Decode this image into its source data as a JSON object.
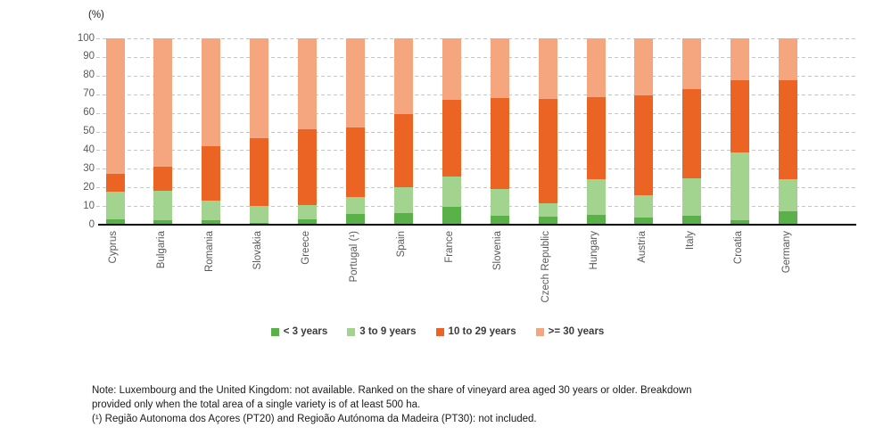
{
  "unit_label": "(%)",
  "chart_data": {
    "type": "bar",
    "stacked": true,
    "orientation": "vertical",
    "title": "",
    "ylabel": "(%)",
    "xlabel": "",
    "ylim": [
      0,
      100
    ],
    "ytick_step": 10,
    "yticks": [
      100,
      90,
      80,
      70,
      60,
      50,
      40,
      30,
      20,
      10,
      0
    ],
    "grid": "horizontal-dashed",
    "legend_position": "bottom-center",
    "categories": [
      "Cyprus",
      "Bulgaria",
      "Romania",
      "Slovakia",
      "Greece",
      "Portugal (¹)",
      "Spain",
      "France",
      "Slovenia",
      "Czech Republic",
      "Hungary",
      "Austria",
      "Italy",
      "Croatia",
      "Germany"
    ],
    "series": [
      {
        "name": "< 3 years",
        "color": "#5AB14A",
        "values": [
          3.1,
          2.2,
          2.6,
          1.1,
          3.0,
          5.6,
          6.3,
          9.4,
          5.0,
          4.1,
          5.4,
          3.8,
          4.9,
          2.5,
          7.4
        ]
      },
      {
        "name": "3 to 9 years",
        "color": "#A3D48F",
        "values": [
          14.7,
          15.8,
          10.2,
          8.8,
          7.5,
          9.3,
          13.7,
          16.4,
          14.0,
          7.3,
          18.8,
          12.2,
          19.9,
          36.4,
          17.2
        ]
      },
      {
        "name": "10 to 29 years",
        "color": "#EC6424",
        "values": [
          9.6,
          13.0,
          29.2,
          36.4,
          40.5,
          37.1,
          39.4,
          41.1,
          48.9,
          56.2,
          44.4,
          53.5,
          48.1,
          38.7,
          53.0
        ]
      },
      {
        "name": ">= 30 years",
        "color": "#F5A67F",
        "values": [
          72.6,
          69.0,
          58.0,
          53.7,
          49.0,
          48.0,
          40.6,
          33.1,
          32.1,
          32.4,
          31.4,
          30.5,
          27.1,
          22.4,
          22.4
        ]
      }
    ]
  },
  "colors": {
    "gridline": "#c6c6c6",
    "axis_line": "#000000",
    "tick_text": "#595959",
    "legend_text": "#3b3b3b"
  },
  "note": {
    "line1": "Note: Luxembourg and the United Kingdom: not available. Ranked on the share of vineyard area aged 30 years or older. Breakdown",
    "line2": "provided only when the total area of a single variety is of at least 500 ha.",
    "line3": "(¹) Região Autonoma dos Açores (PT20) and Regioão Autónoma da Madeira (PT30): not included."
  }
}
